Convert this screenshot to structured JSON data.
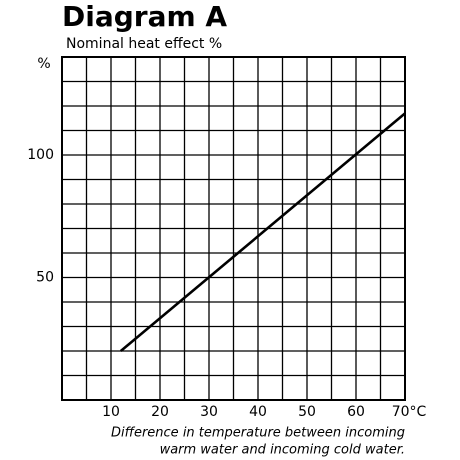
{
  "chart_data": {
    "type": "line",
    "title": "Diagram A",
    "subtitle": "Nominal heat effect %",
    "ylabel": "%",
    "xlabel": [
      "Difference in temperature between incoming",
      "warm water and incoming cold water."
    ],
    "x": [
      12,
      70
    ],
    "series": [
      {
        "color": "#000000",
        "values": [
          20,
          117
        ]
      }
    ],
    "xlim": [
      0,
      70
    ],
    "ylim": [
      0,
      140
    ],
    "xticks": [
      10,
      20,
      30,
      40,
      50,
      60,
      {
        "value": 70,
        "label": "70°C"
      }
    ],
    "yticks": [
      50,
      100
    ],
    "grid": {
      "x_step": 5,
      "y_step": 10
    }
  }
}
